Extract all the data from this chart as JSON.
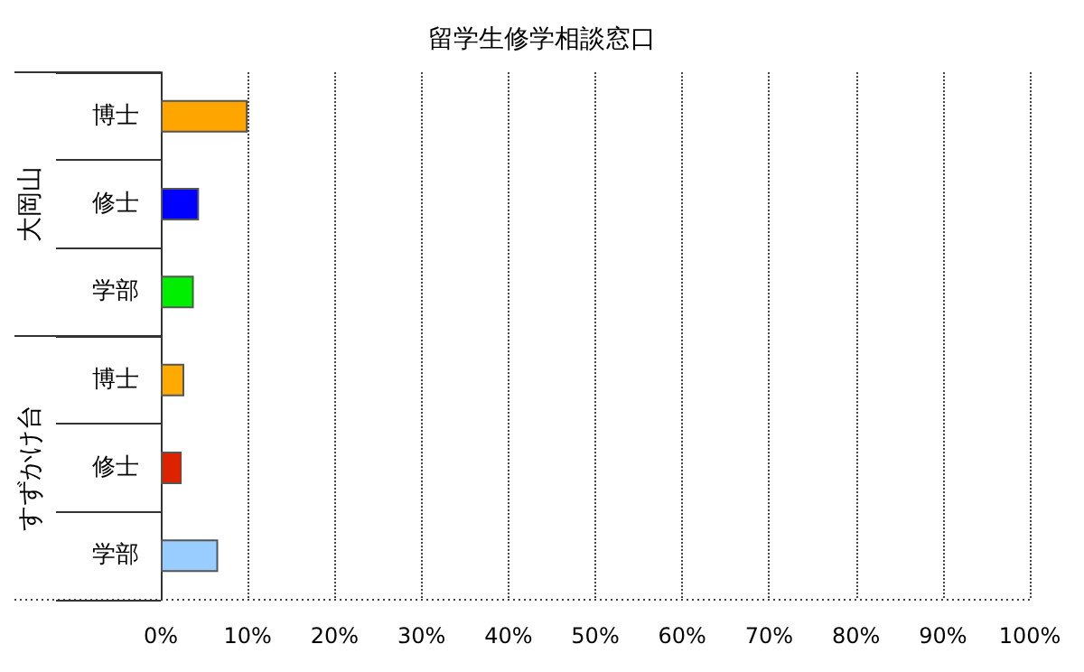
{
  "chart_data": {
    "type": "bar",
    "orientation": "horizontal",
    "title": "留学生修学相談窓口",
    "categories": [
      "博士",
      "修士",
      "学部",
      "博士",
      "修士",
      "学部"
    ],
    "values": [
      10,
      4.4,
      3.8,
      2.7,
      2.4,
      6.6
    ],
    "colors": [
      "#ffa500",
      "#0000ff",
      "#00ee00",
      "#ffaa00",
      "#dd2200",
      "#99ccff"
    ],
    "annotations": [
      "大岡山",
      "すずかけ台"
    ],
    "xlim": [
      0,
      100
    ],
    "xticks": [
      {
        "value": 0,
        "label": "0%"
      },
      {
        "value": 10,
        "label": "10%"
      },
      {
        "value": 20,
        "label": "20%"
      },
      {
        "value": 30,
        "label": "30%"
      },
      {
        "value": 40,
        "label": "40%"
      },
      {
        "value": 50,
        "label": "50%"
      },
      {
        "value": 60,
        "label": "60%"
      },
      {
        "value": 70,
        "label": "70%"
      },
      {
        "value": 80,
        "label": "80%"
      },
      {
        "value": 90,
        "label": "90%"
      },
      {
        "value": 100,
        "label": "100%"
      }
    ],
    "grid": "x"
  }
}
